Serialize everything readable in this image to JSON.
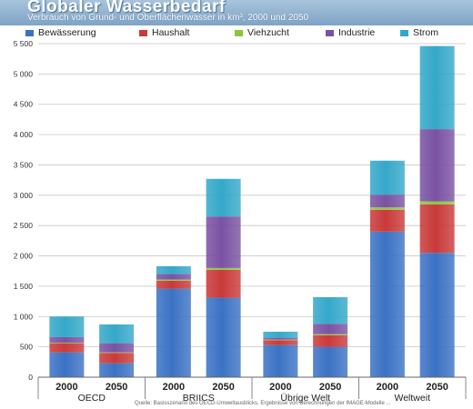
{
  "header": {
    "title": "Globaler Wasserbedarf",
    "subtitle": "Verbrauch von Grund- und Oberflächenwasser in km³, 2000 und 2050"
  },
  "source": "Quelle: Basisszenario des OECD-Umweltausblicks, Ergebnisse von Berechnungen der IMAGE-Modelle ...",
  "colors": {
    "Bewässerung": "#3b72c4",
    "Haushalt": "#c93a3a",
    "Viehzucht": "#8ec43c",
    "Industrie": "#7a52a3",
    "Strom": "#35a8c9"
  },
  "chart_data": {
    "type": "bar",
    "stacked": true,
    "title": "Globaler Wasserbedarf",
    "subtitle": "Verbrauch von Grund- und Oberflächenwasser in km³, 2000 und 2050",
    "ylim": [
      0,
      5500
    ],
    "yticks": [
      0,
      500,
      1000,
      1500,
      2000,
      2500,
      3000,
      3500,
      4000,
      4500,
      5000,
      5500
    ],
    "legend_position": "top",
    "groups": [
      {
        "label": "OECD",
        "categories": [
          "2000",
          "2050"
        ]
      },
      {
        "label": "BRIICS",
        "categories": [
          "2000",
          "2050"
        ]
      },
      {
        "label": "Übrige Welt",
        "categories": [
          "2000",
          "2050"
        ]
      },
      {
        "label": "Weltweit",
        "categories": [
          "2000",
          "2050"
        ]
      }
    ],
    "categories": [
      "2000",
      "2050",
      "2000",
      "2050",
      "2000",
      "2050",
      "2000",
      "2050"
    ],
    "series": [
      {
        "name": "Bewässerung",
        "values": [
          410,
          230,
          1460,
          1310,
          530,
          500,
          2400,
          2050
        ]
      },
      {
        "name": "Haushalt",
        "values": [
          150,
          170,
          130,
          460,
          80,
          190,
          360,
          800
        ]
      },
      {
        "name": "Viehzucht",
        "values": [
          10,
          10,
          20,
          30,
          10,
          20,
          40,
          50
        ]
      },
      {
        "name": "Industrie",
        "values": [
          90,
          150,
          90,
          850,
          30,
          170,
          210,
          1190
        ]
      },
      {
        "name": "Strom",
        "values": [
          340,
          310,
          130,
          620,
          100,
          440,
          560,
          1370
        ]
      }
    ]
  }
}
